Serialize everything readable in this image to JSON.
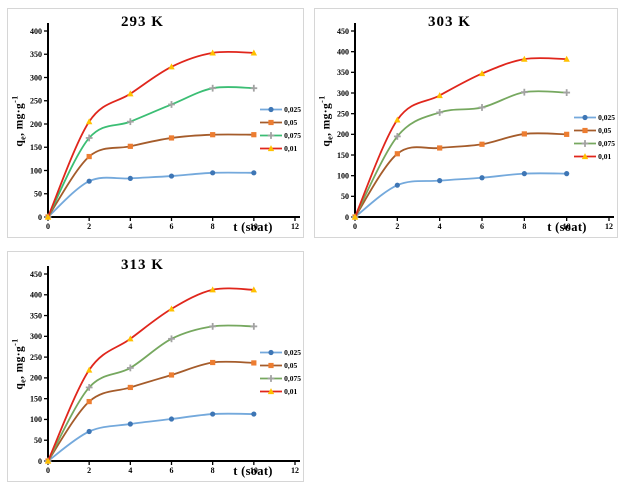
{
  "page": {
    "background": "#ffffff"
  },
  "axis": {
    "x_label": "t (soat)",
    "y_label_parts": {
      "base": "q",
      "sub": "e",
      "mid": ", mg·g",
      "sup": "-1"
    }
  },
  "colors": {
    "series1_line": "#74A9DC",
    "series1_marker": "#3E76B5",
    "series2_line": "#A55C2B",
    "series2_marker": "#ED7D31",
    "series3_line_chart1": "#3BBE74",
    "series3_line_others": "#76A85F",
    "series3_marker": "#A3A3A3",
    "series4_line": "#E0261C",
    "series4_marker": "#FFC000",
    "axis": "#000000",
    "panel_border": "#d6d6d6"
  },
  "chart_data": [
    {
      "type": "line",
      "title": "293 K",
      "xlabel": "t (soat)",
      "ylabel": "qe, mg·g-1",
      "x": [
        0,
        2,
        4,
        6,
        8,
        10
      ],
      "xlim": [
        0,
        12
      ],
      "xticks": [
        0,
        2,
        4,
        6,
        8,
        10,
        12
      ],
      "ylim": [
        0,
        400
      ],
      "yticks": [
        0,
        50,
        100,
        150,
        200,
        250,
        300,
        350,
        400
      ],
      "grid": false,
      "legend_position": "right",
      "series": [
        {
          "name": "0,025",
          "values": [
            0,
            77,
            83,
            88,
            95,
            95
          ],
          "line_color": "#74A9DC",
          "marker_color": "#3E76B5",
          "marker": "circle"
        },
        {
          "name": "0,05",
          "values": [
            0,
            130,
            152,
            170,
            177,
            177
          ],
          "line_color": "#A55C2B",
          "marker_color": "#ED7D31",
          "marker": "square"
        },
        {
          "name": "0,075",
          "values": [
            0,
            170,
            205,
            242,
            277,
            277
          ],
          "line_color": "#3BBE74",
          "marker_color": "#A3A3A3",
          "marker": "plus"
        },
        {
          "name": "0,01",
          "values": [
            0,
            205,
            265,
            323,
            353,
            353
          ],
          "line_color": "#E0261C",
          "marker_color": "#FFC000",
          "marker": "triangle"
        }
      ]
    },
    {
      "type": "line",
      "title": "303 K",
      "xlabel": "t (soat)",
      "ylabel": "qe, mg·g-1",
      "x": [
        0,
        2,
        4,
        6,
        8,
        10
      ],
      "xlim": [
        0,
        12
      ],
      "xticks": [
        0,
        2,
        4,
        6,
        8,
        10,
        12
      ],
      "ylim": [
        0,
        450
      ],
      "yticks": [
        0,
        50,
        100,
        150,
        200,
        250,
        300,
        350,
        400,
        450
      ],
      "grid": false,
      "legend_position": "right",
      "series": [
        {
          "name": "0,025",
          "values": [
            0,
            77,
            88,
            95,
            105,
            105
          ],
          "line_color": "#74A9DC",
          "marker_color": "#3E76B5",
          "marker": "circle"
        },
        {
          "name": "0,05",
          "values": [
            0,
            153,
            167,
            176,
            201,
            200
          ],
          "line_color": "#A55C2B",
          "marker_color": "#ED7D31",
          "marker": "square"
        },
        {
          "name": "0,075",
          "values": [
            0,
            195,
            253,
            265,
            302,
            301
          ],
          "line_color": "#76A85F",
          "marker_color": "#A3A3A3",
          "marker": "plus"
        },
        {
          "name": "0,01",
          "values": [
            0,
            235,
            294,
            347,
            382,
            382
          ],
          "line_color": "#E0261C",
          "marker_color": "#FFC000",
          "marker": "triangle"
        }
      ]
    },
    {
      "type": "line",
      "title": "313 K",
      "xlabel": "t (soat)",
      "ylabel": "qe, mg·g-1",
      "x": [
        0,
        2,
        4,
        6,
        8,
        10
      ],
      "xlim": [
        0,
        12
      ],
      "xticks": [
        0,
        2,
        4,
        6,
        8,
        10,
        12
      ],
      "ylim": [
        0,
        450
      ],
      "yticks": [
        0,
        50,
        100,
        150,
        200,
        250,
        300,
        350,
        400,
        450
      ],
      "grid": false,
      "legend_position": "right",
      "series": [
        {
          "name": "0,025",
          "values": [
            0,
            71,
            89,
            101,
            113,
            113
          ],
          "line_color": "#74A9DC",
          "marker_color": "#3E76B5",
          "marker": "circle"
        },
        {
          "name": "0,05",
          "values": [
            0,
            143,
            177,
            207,
            237,
            236
          ],
          "line_color": "#A55C2B",
          "marker_color": "#ED7D31",
          "marker": "square"
        },
        {
          "name": "0,075",
          "values": [
            0,
            177,
            224,
            294,
            324,
            324
          ],
          "line_color": "#76A85F",
          "marker_color": "#A3A3A3",
          "marker": "plus"
        },
        {
          "name": "0,01",
          "values": [
            0,
            219,
            294,
            366,
            412,
            412
          ],
          "line_color": "#E0261C",
          "marker_color": "#FFC000",
          "marker": "triangle"
        }
      ]
    }
  ]
}
